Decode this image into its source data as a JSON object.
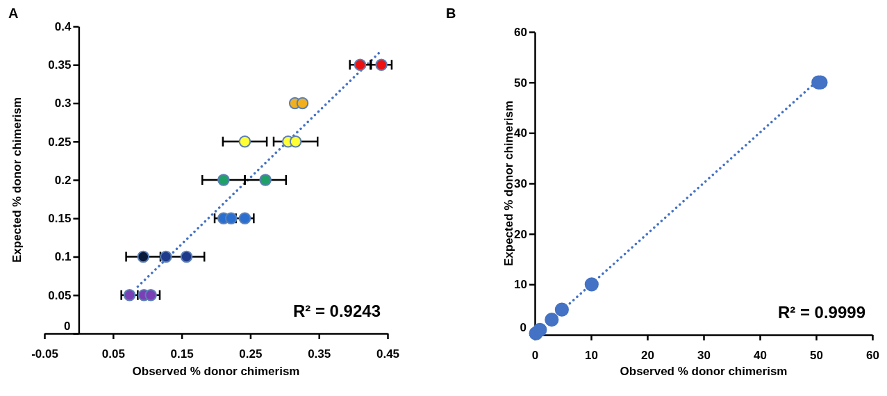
{
  "chart_data": [
    {
      "type": "scatter",
      "title": "A",
      "xlabel": "Observed % donor chimerism",
      "ylabel": "Expected %  donor chimerism",
      "xlim": [
        -0.05,
        0.45
      ],
      "ylim": [
        0,
        0.4
      ],
      "xticks": [
        -0.05,
        0.05,
        0.15,
        0.25,
        0.35,
        0.45
      ],
      "yticks": [
        0,
        0.05,
        0.1,
        0.15,
        0.2,
        0.25,
        0.3,
        0.35,
        0.4
      ],
      "marker": "circle",
      "annotations": [
        "R² = 0.9243"
      ],
      "series": [
        {
          "color": "#7b3fb5",
          "x": [
            0.074,
            0.095,
            0.105
          ],
          "values": [
            0.05,
            0.05,
            0.05
          ],
          "xerrors": [
            0.012,
            null,
            0.013
          ]
        },
        {
          "color": "#0a1a3a",
          "x": [
            0.094
          ],
          "values": [
            0.1
          ],
          "xerrors": [
            0.025
          ]
        },
        {
          "color": "#1f3a8a",
          "x": [
            0.127,
            0.157
          ],
          "values": [
            0.1,
            0.1
          ],
          "xerrors": [
            null,
            0.026
          ]
        },
        {
          "color": "#2a6fcf",
          "x": [
            0.211,
            0.222,
            0.242
          ],
          "values": [
            0.15,
            0.15,
            0.15
          ],
          "xerrors": [
            0.013,
            null,
            0.013
          ]
        },
        {
          "color": "#1fa067",
          "x": [
            0.211,
            0.272
          ],
          "values": [
            0.2,
            0.2
          ],
          "xerrors": [
            0.031,
            0.03
          ]
        },
        {
          "color": "#ffff33",
          "x": [
            0.242,
            0.305,
            0.316
          ],
          "values": [
            0.25,
            0.25,
            0.25
          ],
          "xerrors": [
            0.032,
            null,
            0.032
          ]
        },
        {
          "color": "#f0b020",
          "x": [
            0.315,
            0.326
          ],
          "values": [
            0.3,
            0.3
          ]
        },
        {
          "color": "#ee1111",
          "x": [
            0.41,
            0.441
          ],
          "values": [
            0.35,
            0.35
          ],
          "xerrors": [
            0.015,
            0.015
          ]
        },
        {
          "type": "line",
          "color": "#4472c4",
          "line_style": "dotted",
          "marker": "none",
          "x": [
            0.086,
            0.437
          ],
          "values": [
            0.061,
            0.365
          ]
        }
      ]
    },
    {
      "type": "scatter",
      "title": "B",
      "xlabel": "Observed % donor chimerism",
      "ylabel": "Expected % donor chimerism",
      "xlim": [
        0,
        60
      ],
      "ylim": [
        0,
        60
      ],
      "xticks": [
        0,
        10,
        20,
        30,
        40,
        50,
        60
      ],
      "yticks": [
        0,
        10,
        20,
        30,
        40,
        50,
        60
      ],
      "marker": "circle",
      "annotations": [
        "R² = 0.9999"
      ],
      "series": [
        {
          "color": "#4472c4",
          "x": [
            0.2,
            0.9,
            3,
            4.8,
            10.1,
            50.4,
            50.8
          ],
          "values": [
            0.3,
            1,
            3,
            5,
            10,
            50,
            50
          ]
        },
        {
          "type": "line",
          "color": "#4472c4",
          "line_style": "dotted",
          "marker": "none",
          "x": [
            1,
            49.7
          ],
          "values": [
            1,
            49.8
          ]
        }
      ]
    }
  ]
}
